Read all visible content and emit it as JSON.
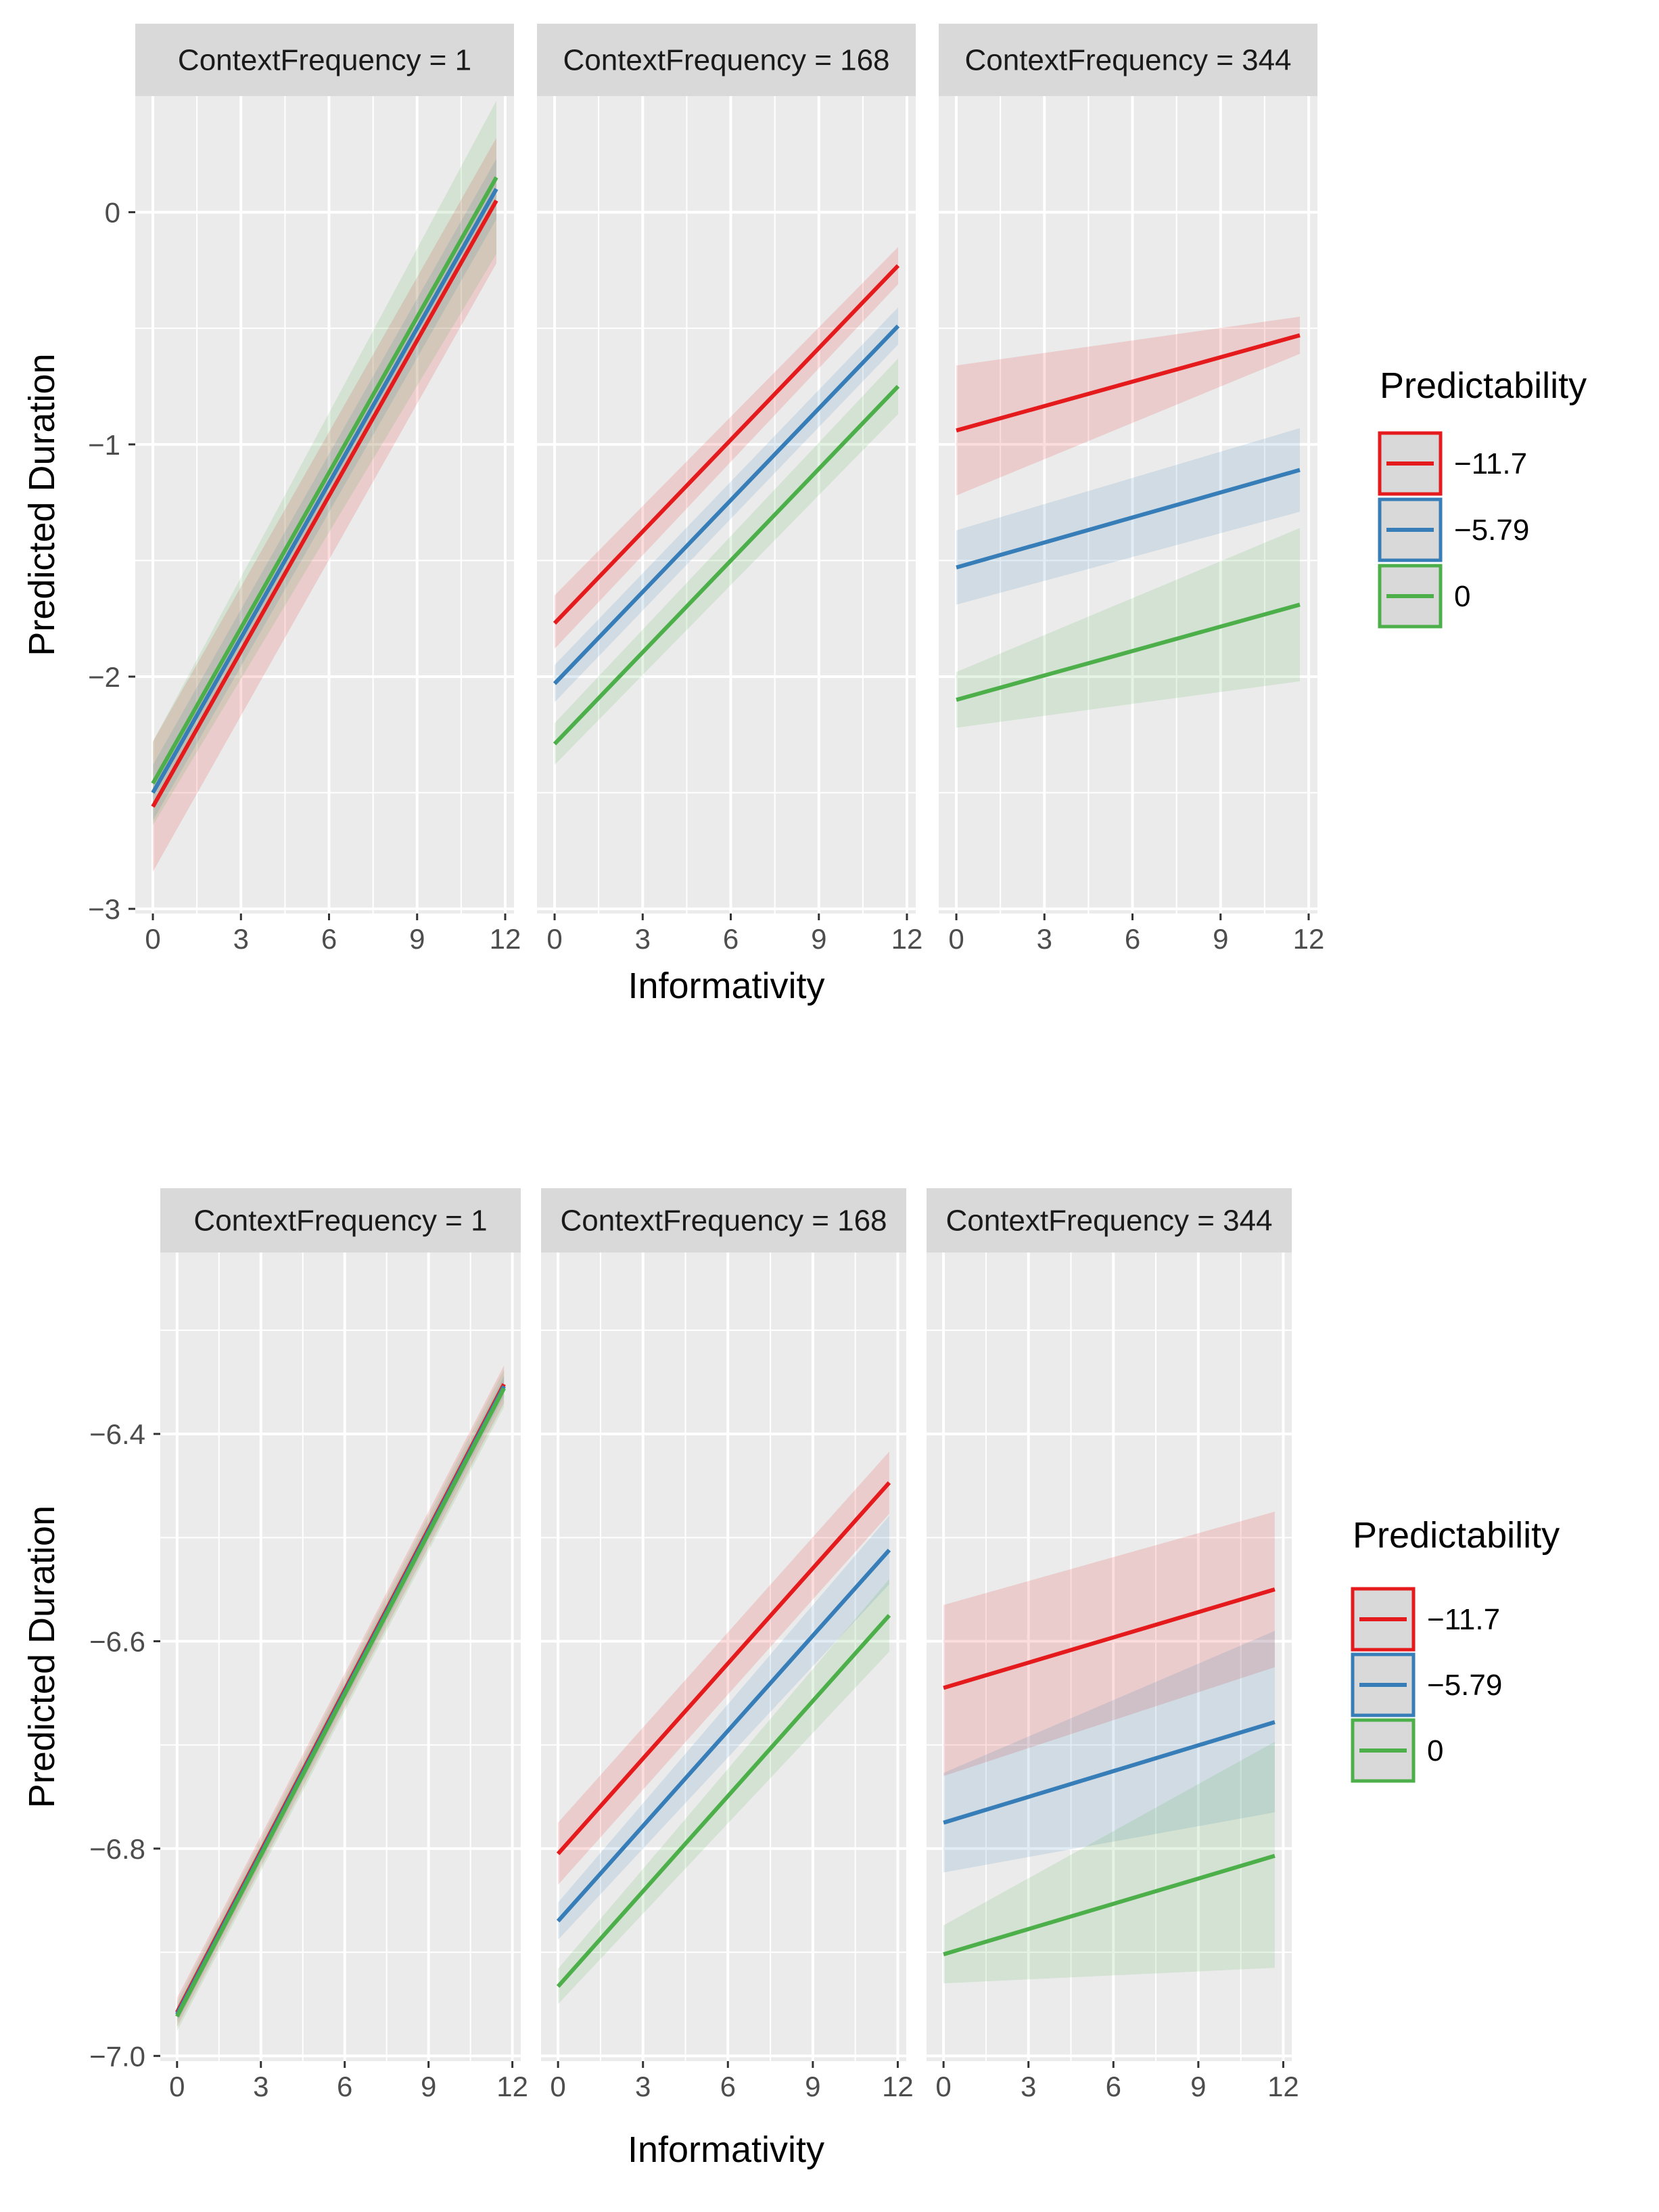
{
  "chart_data": [
    {
      "type": "line",
      "facet_var": "ContextFrequency",
      "panels": [
        {
          "strip": "ContextFrequency = 1",
          "series": [
            {
              "name": "−11.7",
              "color": "#E41A1C",
              "x": [
                0,
                11.7
              ],
              "y": [
                -2.56,
                0.05
              ],
              "ci_low": [
                -2.84,
                -0.22
              ],
              "ci_high": [
                -2.28,
                0.32
              ]
            },
            {
              "name": "−5.79",
              "color": "#377EB8",
              "x": [
                0,
                11.7
              ],
              "y": [
                -2.5,
                0.1
              ],
              "ci_low": [
                -2.62,
                -0.03
              ],
              "ci_high": [
                -2.38,
                0.23
              ]
            },
            {
              "name": "0",
              "color": "#4DAF4A",
              "x": [
                0,
                11.7
              ],
              "y": [
                -2.46,
                0.15
              ],
              "ci_low": [
                -2.64,
                -0.18
              ],
              "ci_high": [
                -2.28,
                0.48
              ]
            }
          ]
        },
        {
          "strip": "ContextFrequency = 168",
          "series": [
            {
              "name": "−11.7",
              "color": "#E41A1C",
              "x": [
                0,
                11.7
              ],
              "y": [
                -1.77,
                -0.23
              ],
              "ci_low": [
                -1.88,
                -0.31
              ],
              "ci_high": [
                -1.65,
                -0.15
              ]
            },
            {
              "name": "−5.79",
              "color": "#377EB8",
              "x": [
                0,
                11.7
              ],
              "y": [
                -2.03,
                -0.49
              ],
              "ci_low": [
                -2.11,
                -0.57
              ],
              "ci_high": [
                -1.95,
                -0.41
              ]
            },
            {
              "name": "0",
              "color": "#4DAF4A",
              "x": [
                0,
                11.7
              ],
              "y": [
                -2.29,
                -0.75
              ],
              "ci_low": [
                -2.38,
                -0.87
              ],
              "ci_high": [
                -2.2,
                -0.63
              ]
            }
          ]
        },
        {
          "strip": "ContextFrequency = 344",
          "series": [
            {
              "name": "−11.7",
              "color": "#E41A1C",
              "x": [
                0,
                11.7
              ],
              "y": [
                -0.94,
                -0.53
              ],
              "ci_low": [
                -1.22,
                -0.61
              ],
              "ci_high": [
                -0.66,
                -0.45
              ]
            },
            {
              "name": "−5.79",
              "color": "#377EB8",
              "x": [
                0,
                11.7
              ],
              "y": [
                -1.53,
                -1.11
              ],
              "ci_low": [
                -1.69,
                -1.29
              ],
              "ci_high": [
                -1.37,
                -0.93
              ]
            },
            {
              "name": "0",
              "color": "#4DAF4A",
              "x": [
                0,
                11.7
              ],
              "y": [
                -2.1,
                -1.69
              ],
              "ci_low": [
                -2.22,
                -2.02
              ],
              "ci_high": [
                -1.98,
                -1.36
              ]
            }
          ]
        }
      ],
      "xlabel": "Informativity",
      "ylabel": "Predicted Duration",
      "xlim": [
        -0.6,
        12.3
      ],
      "ylim": [
        -3.02,
        0.5
      ],
      "xticks": [
        0,
        3,
        6,
        9,
        12
      ],
      "xtick_labels": [
        "0",
        "3",
        "6",
        "9",
        "12"
      ],
      "yticks": [
        -3,
        -2,
        -1,
        0
      ],
      "ytick_labels": [
        "−3",
        "−2",
        "−1",
        "0"
      ],
      "legend_title": "Predictability",
      "legend_labels": [
        "−11.7",
        "−5.79",
        "0"
      ],
      "grid": true
    },
    {
      "type": "line",
      "facet_var": "ContextFrequency",
      "panels": [
        {
          "strip": "ContextFrequency = 1",
          "series": [
            {
              "name": "−11.7",
              "color": "#E41A1C",
              "x": [
                0,
                11.7
              ],
              "y": [
                -6.958,
                -6.352
              ],
              "ci_low": [
                -6.972,
                -6.37
              ],
              "ci_high": [
                -6.944,
                -6.334
              ]
            },
            {
              "name": "−5.79",
              "color": "#377EB8",
              "x": [
                0,
                11.7
              ],
              "y": [
                -6.96,
                -6.354
              ],
              "ci_low": [
                -6.968,
                -6.364
              ],
              "ci_high": [
                -6.952,
                -6.344
              ]
            },
            {
              "name": "0",
              "color": "#4DAF4A",
              "x": [
                0,
                11.7
              ],
              "y": [
                -6.962,
                -6.356
              ],
              "ci_low": [
                -6.976,
                -6.374
              ],
              "ci_high": [
                -6.948,
                -6.338
              ]
            }
          ]
        },
        {
          "strip": "ContextFrequency = 168",
          "series": [
            {
              "name": "−11.7",
              "color": "#E41A1C",
              "x": [
                0,
                11.7
              ],
              "y": [
                -6.805,
                -6.447
              ],
              "ci_low": [
                -6.835,
                -6.477
              ],
              "ci_high": [
                -6.775,
                -6.417
              ]
            },
            {
              "name": "−5.79",
              "color": "#377EB8",
              "x": [
                0,
                11.7
              ],
              "y": [
                -6.87,
                -6.512
              ],
              "ci_low": [
                -6.888,
                -6.545
              ],
              "ci_high": [
                -6.852,
                -6.479
              ]
            },
            {
              "name": "0",
              "color": "#4DAF4A",
              "x": [
                0,
                11.7
              ],
              "y": [
                -6.933,
                -6.575
              ],
              "ci_low": [
                -6.95,
                -6.61
              ],
              "ci_high": [
                -6.916,
                -6.54
              ]
            }
          ]
        },
        {
          "strip": "ContextFrequency = 344",
          "series": [
            {
              "name": "−11.7",
              "color": "#E41A1C",
              "x": [
                0,
                11.7
              ],
              "y": [
                -6.645,
                -6.55
              ],
              "ci_low": [
                -6.73,
                -6.625
              ],
              "ci_high": [
                -6.565,
                -6.475
              ]
            },
            {
              "name": "−5.79",
              "color": "#377EB8",
              "x": [
                0,
                11.7
              ],
              "y": [
                -6.775,
                -6.678
              ],
              "ci_low": [
                -6.823,
                -6.765
              ],
              "ci_high": [
                -6.727,
                -6.59
              ]
            },
            {
              "name": "0",
              "color": "#4DAF4A",
              "x": [
                0,
                11.7
              ],
              "y": [
                -6.902,
                -6.807
              ],
              "ci_low": [
                -6.93,
                -6.915
              ],
              "ci_high": [
                -6.874,
                -6.697
              ]
            }
          ]
        }
      ],
      "xlabel": "Informativity",
      "ylabel": "Predicted Duration",
      "xlim": [
        -0.6,
        12.3
      ],
      "ylim": [
        -7.005,
        -6.225
      ],
      "xticks": [
        0,
        3,
        6,
        9,
        12
      ],
      "xtick_labels": [
        "0",
        "3",
        "6",
        "9",
        "12"
      ],
      "yticks": [
        -7.0,
        -6.8,
        -6.6,
        -6.4
      ],
      "ytick_labels": [
        "−7.0",
        "−6.8",
        "−6.6",
        "−6.4"
      ],
      "legend_title": "Predictability",
      "legend_labels": [
        "−11.7",
        "−5.79",
        "0"
      ],
      "grid": true
    }
  ]
}
